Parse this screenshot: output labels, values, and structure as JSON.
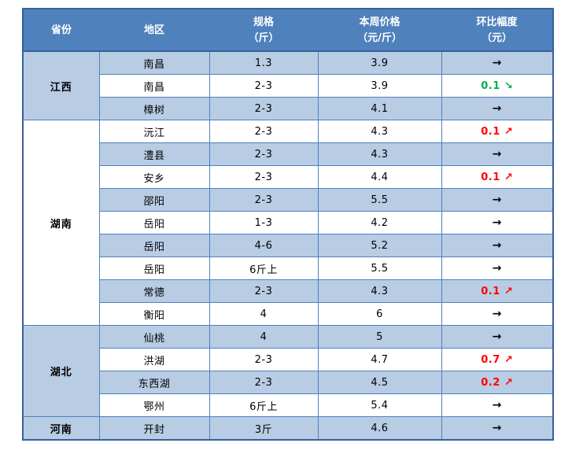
{
  "page": {
    "background": "#ffffff"
  },
  "table": {
    "columns": [
      {
        "label_line1": "省份",
        "label_line2": ""
      },
      {
        "label_line1": "地区",
        "label_line2": ""
      },
      {
        "label_line1": "规格",
        "label_line2": "（斤）"
      },
      {
        "label_line1": "本周价格",
        "label_line2": "（元/斤）"
      },
      {
        "label_line1": "环比幅度",
        "label_line2": "（元）"
      }
    ],
    "colors": {
      "header_bg": "#4f81bd",
      "header_text": "#ffffff",
      "row_alt_bg": "#b8cce4",
      "row_bg": "#ffffff",
      "inner_border": "#4f81bd",
      "outer_border": "#35619b",
      "body_text": "#000000",
      "up_color": "#ff0000",
      "down_color": "#00b050",
      "flat_color": "#000000"
    },
    "icons": {
      "up_arrow": "↗",
      "down_arrow": "↘",
      "flat_arrow": "→"
    },
    "groups": [
      {
        "province": "江西",
        "rows": [
          {
            "region": "南昌",
            "spec": "1.3",
            "price": "3.9",
            "change": "",
            "trend": "flat"
          },
          {
            "region": "南昌",
            "spec": "2-3",
            "price": "3.9",
            "change": "0.1",
            "trend": "down"
          },
          {
            "region": "樟树",
            "spec": "2-3",
            "price": "4.1",
            "change": "",
            "trend": "flat"
          }
        ]
      },
      {
        "province": "湖南",
        "rows": [
          {
            "region": "沅江",
            "spec": "2-3",
            "price": "4.3",
            "change": "0.1",
            "trend": "up"
          },
          {
            "region": "澧县",
            "spec": "2-3",
            "price": "4.3",
            "change": "",
            "trend": "flat"
          },
          {
            "region": "安乡",
            "spec": "2-3",
            "price": "4.4",
            "change": "0.1",
            "trend": "up"
          },
          {
            "region": "邵阳",
            "spec": "2-3",
            "price": "5.5",
            "change": "",
            "trend": "flat"
          },
          {
            "region": "岳阳",
            "spec": "1-3",
            "price": "4.2",
            "change": "",
            "trend": "flat"
          },
          {
            "region": "岳阳",
            "spec": "4-6",
            "price": "5.2",
            "change": "",
            "trend": "flat"
          },
          {
            "region": "岳阳",
            "spec": "6斤上",
            "price": "5.5",
            "change": "",
            "trend": "flat"
          },
          {
            "region": "常德",
            "spec": "2-3",
            "price": "4.3",
            "change": "0.1",
            "trend": "up"
          },
          {
            "region": "衡阳",
            "spec": "4",
            "price": "6",
            "change": "",
            "trend": "flat"
          }
        ]
      },
      {
        "province": "湖北",
        "rows": [
          {
            "region": "仙桃",
            "spec": "4",
            "price": "5",
            "change": "",
            "trend": "flat"
          },
          {
            "region": "洪湖",
            "spec": "2-3",
            "price": "4.7",
            "change": "0.7",
            "trend": "up"
          },
          {
            "region": "东西湖",
            "spec": "2-3",
            "price": "4.5",
            "change": "0.2",
            "trend": "up"
          },
          {
            "region": "鄂州",
            "spec": "6斤上",
            "price": "5.4",
            "change": "",
            "trend": "flat"
          }
        ]
      },
      {
        "province": "河南",
        "rows": [
          {
            "region": "开封",
            "spec": "3斤",
            "price": "4.6",
            "change": "",
            "trend": "flat"
          }
        ]
      }
    ]
  }
}
